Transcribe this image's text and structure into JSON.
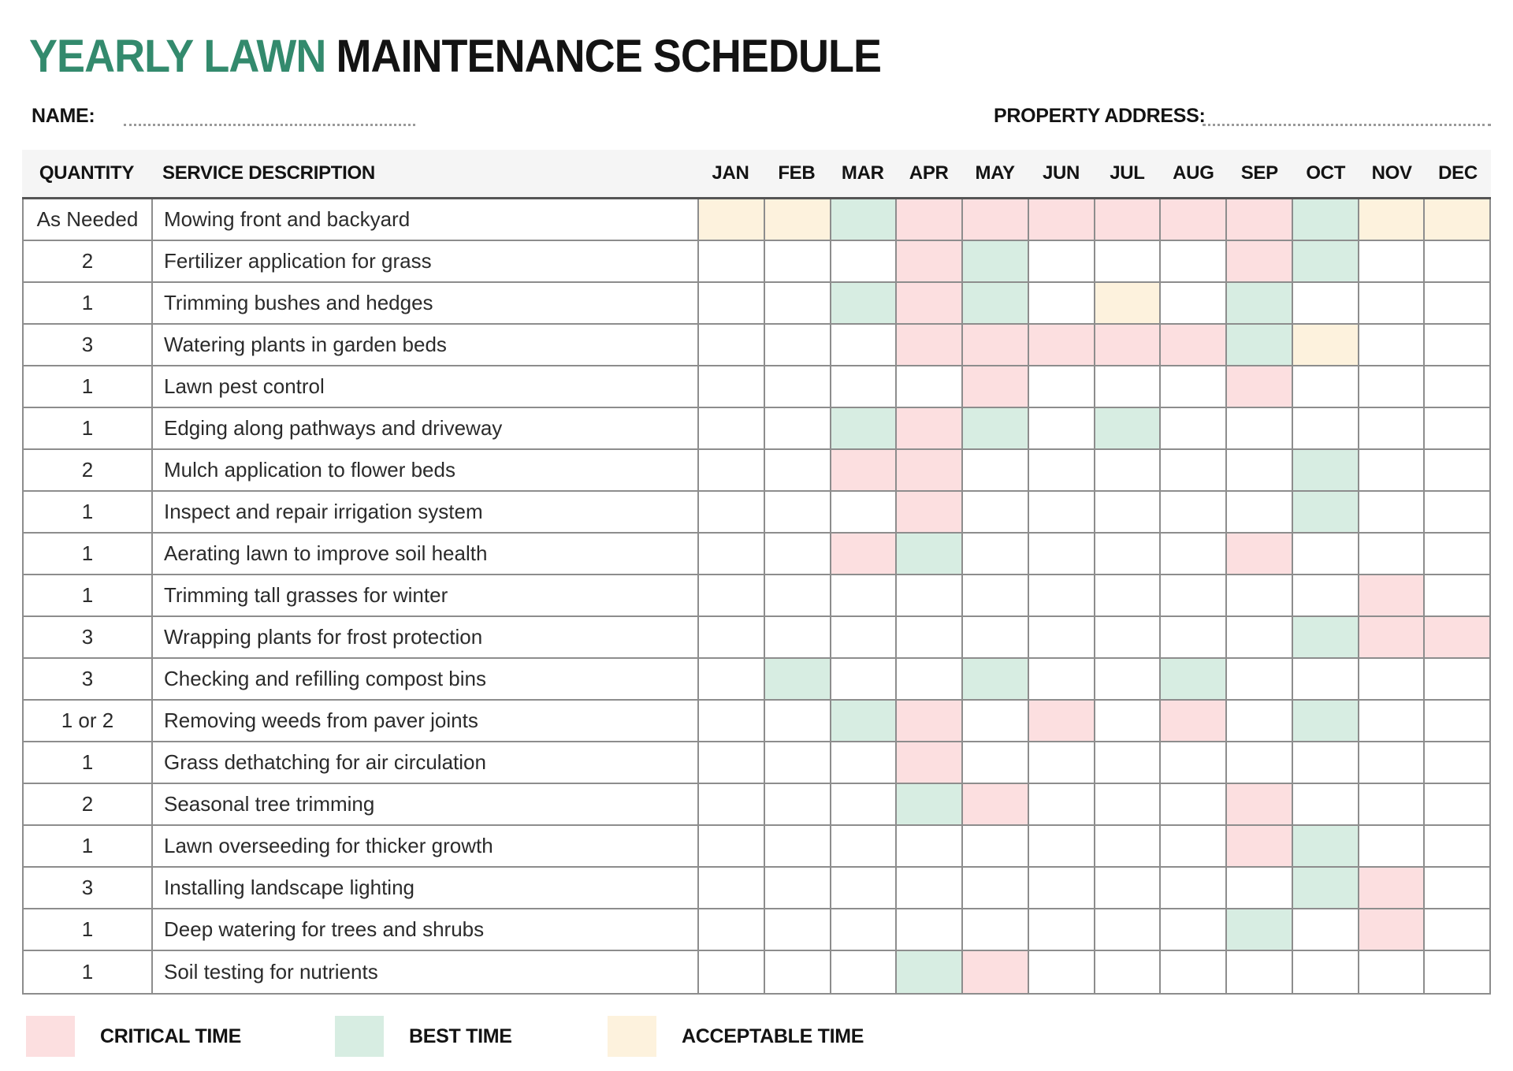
{
  "title": {
    "highlight": "YEARLY LAWN",
    "rest": "MAINTENANCE SCHEDULE"
  },
  "fields": {
    "name_label": "NAME:",
    "name_value": "",
    "address_label": "PROPERTY ADDRESS:",
    "address_value": ""
  },
  "table": {
    "headers": {
      "quantity": "QUANTITY",
      "service": "SERVICE DESCRIPTION"
    },
    "months": [
      "JAN",
      "FEB",
      "MAR",
      "APR",
      "MAY",
      "JUN",
      "JUL",
      "AUG",
      "SEP",
      "OCT",
      "NOV",
      "DEC"
    ],
    "cell_codes": {
      "c": "critical",
      "b": "best",
      "a": "acceptable",
      "": "none"
    },
    "rows": [
      {
        "quantity": "As Needed",
        "service": "Mowing front and backyard",
        "months": [
          "a",
          "a",
          "b",
          "c",
          "c",
          "c",
          "c",
          "c",
          "c",
          "b",
          "a",
          "a"
        ]
      },
      {
        "quantity": "2",
        "service": "Fertilizer application for grass",
        "months": [
          "",
          "",
          "",
          "c",
          "b",
          "",
          "",
          "",
          "c",
          "b",
          "",
          ""
        ]
      },
      {
        "quantity": "1",
        "service": "Trimming bushes and hedges",
        "months": [
          "",
          "",
          "b",
          "c",
          "b",
          "",
          "a",
          "",
          "b",
          "",
          "",
          ""
        ]
      },
      {
        "quantity": "3",
        "service": "Watering plants in garden beds",
        "months": [
          "",
          "",
          "",
          "c",
          "c",
          "c",
          "c",
          "c",
          "b",
          "a",
          "",
          ""
        ]
      },
      {
        "quantity": "1",
        "service": "Lawn pest control",
        "months": [
          "",
          "",
          "",
          "",
          "c",
          "",
          "",
          "",
          "c",
          "",
          "",
          ""
        ]
      },
      {
        "quantity": "1",
        "service": "Edging along pathways and driveway",
        "months": [
          "",
          "",
          "b",
          "c",
          "b",
          "",
          "b",
          "",
          "",
          "",
          "",
          ""
        ]
      },
      {
        "quantity": "2",
        "service": "Mulch application to flower beds",
        "months": [
          "",
          "",
          "c",
          "c",
          "",
          "",
          "",
          "",
          "",
          "b",
          "",
          ""
        ]
      },
      {
        "quantity": "1",
        "service": "Inspect and repair irrigation system",
        "months": [
          "",
          "",
          "",
          "c",
          "",
          "",
          "",
          "",
          "",
          "b",
          "",
          ""
        ]
      },
      {
        "quantity": "1",
        "service": "Aerating lawn to improve soil health",
        "months": [
          "",
          "",
          "c",
          "b",
          "",
          "",
          "",
          "",
          "c",
          "",
          "",
          ""
        ]
      },
      {
        "quantity": "1",
        "service": "Trimming tall grasses for winter",
        "months": [
          "",
          "",
          "",
          "",
          "",
          "",
          "",
          "",
          "",
          "",
          "c",
          ""
        ]
      },
      {
        "quantity": "3",
        "service": "Wrapping plants for frost protection",
        "months": [
          "",
          "",
          "",
          "",
          "",
          "",
          "",
          "",
          "",
          "b",
          "c",
          "c"
        ]
      },
      {
        "quantity": "3",
        "service": "Checking and refilling compost bins",
        "months": [
          "",
          "b",
          "",
          "",
          "b",
          "",
          "",
          "b",
          "",
          "",
          "",
          ""
        ]
      },
      {
        "quantity": "1 or 2",
        "service": "Removing weeds from paver joints",
        "months": [
          "",
          "",
          "b",
          "c",
          "",
          "c",
          "",
          "c",
          "",
          "b",
          "",
          ""
        ]
      },
      {
        "quantity": "1",
        "service": "Grass dethatching for air circulation",
        "months": [
          "",
          "",
          "",
          "c",
          "",
          "",
          "",
          "",
          "",
          "",
          "",
          ""
        ]
      },
      {
        "quantity": "2",
        "service": "Seasonal tree trimming",
        "months": [
          "",
          "",
          "",
          "b",
          "c",
          "",
          "",
          "",
          "c",
          "",
          "",
          ""
        ]
      },
      {
        "quantity": "1",
        "service": "Lawn overseeding for thicker growth",
        "months": [
          "",
          "",
          "",
          "",
          "",
          "",
          "",
          "",
          "c",
          "b",
          "",
          ""
        ]
      },
      {
        "quantity": "3",
        "service": "Installing landscape lighting",
        "months": [
          "",
          "",
          "",
          "",
          "",
          "",
          "",
          "",
          "",
          "b",
          "c",
          ""
        ]
      },
      {
        "quantity": "1",
        "service": "Deep watering for trees and shrubs",
        "months": [
          "",
          "",
          "",
          "",
          "",
          "",
          "",
          "",
          "b",
          "",
          "c",
          ""
        ]
      },
      {
        "quantity": "1",
        "service": "Soil testing for nutrients",
        "months": [
          "",
          "",
          "",
          "b",
          "c",
          "",
          "",
          "",
          "",
          "",
          "",
          ""
        ]
      }
    ]
  },
  "legend": [
    {
      "label": "CRITICAL TIME",
      "key": "critical"
    },
    {
      "label": "BEST TIME",
      "key": "best"
    },
    {
      "label": "ACCEPTABLE TIME",
      "key": "acceptable"
    }
  ],
  "colors": {
    "critical": "#fcdfe0",
    "best": "#d7ede2",
    "acceptable": "#fdf2dd",
    "accent": "#338a6d",
    "grid_line": "#8d8d8d",
    "header_bg": "#f5f5f5"
  }
}
